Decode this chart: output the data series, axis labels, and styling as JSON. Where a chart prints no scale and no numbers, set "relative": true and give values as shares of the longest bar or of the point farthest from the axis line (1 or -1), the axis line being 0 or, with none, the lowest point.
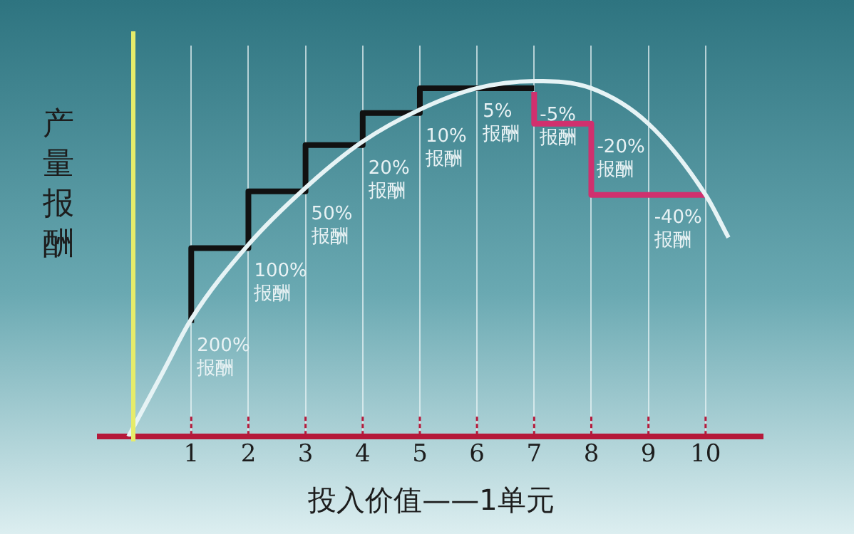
{
  "chart_data": {
    "type": "line",
    "relative": true,
    "xlabel": "投入价值——1单元",
    "ylabel": "产量报酬",
    "xlim": [
      -0.6,
      11
    ],
    "xticks": [
      1,
      2,
      3,
      4,
      5,
      6,
      7,
      8,
      9,
      10
    ],
    "grid": "x",
    "legend": false,
    "marker": "none",
    "series": [
      {
        "type": "line",
        "color": "#e6f3f5",
        "x": [
          -0.1,
          0.5,
          1,
          2,
          3,
          4,
          5,
          6,
          7,
          8,
          9,
          10,
          10.4
        ],
        "values": [
          0,
          0.18,
          0.33,
          0.54,
          0.7,
          0.83,
          0.92,
          0.98,
          1,
          0.98,
          0.88,
          0.68,
          0.56
        ]
      },
      {
        "type": "step",
        "color": "#111111",
        "x": [
          1,
          2,
          3,
          4,
          5,
          6,
          7
        ],
        "values": [
          0.32,
          0.53,
          0.69,
          0.82,
          0.91,
          0.98,
          0.98
        ]
      },
      {
        "type": "step",
        "color": "#d0306e",
        "x": [
          7,
          8,
          9,
          10
        ],
        "values": [
          0.97,
          0.88,
          0.68,
          0.68
        ]
      }
    ],
    "annotations": [
      {
        "text": "200%\n报酬",
        "x": 1,
        "y": 0.32
      },
      {
        "text": "100%\n报酬",
        "x": 2,
        "y": 0.53
      },
      {
        "text": "50%\n报酬",
        "x": 3,
        "y": 0.69
      },
      {
        "text": "20%\n报酬",
        "x": 4,
        "y": 0.82
      },
      {
        "text": "10%\n报酬",
        "x": 5,
        "y": 0.91
      },
      {
        "text": "5%\n报酬",
        "x": 6,
        "y": 0.98
      },
      {
        "text": "-5%\n报酬",
        "x": 7,
        "y": 0.97
      },
      {
        "text": "-20%\n报酬",
        "x": 8,
        "y": 0.88
      },
      {
        "text": "-40%\n报酬",
        "x": 9,
        "y": 0.68
      }
    ]
  }
}
